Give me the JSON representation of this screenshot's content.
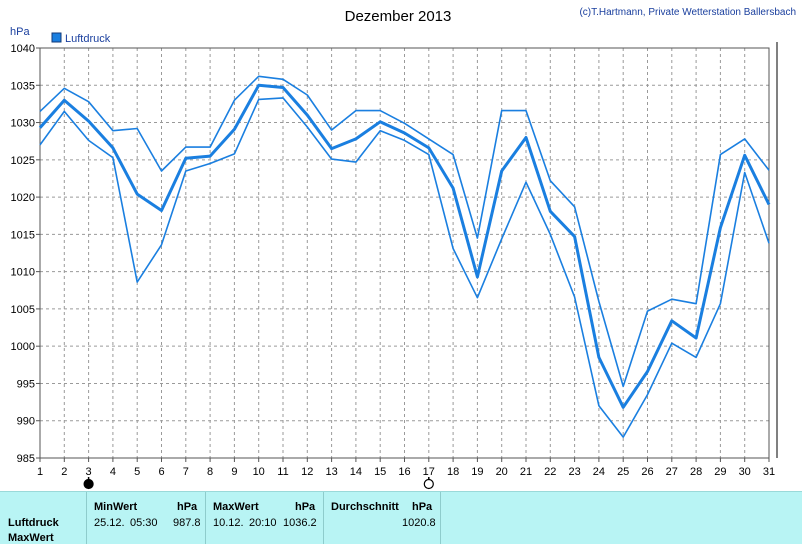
{
  "chart_data": {
    "type": "line",
    "title": "Dezember 2013",
    "copyright": "(c)T.Hartmann, Private Wetterstation Ballersbach",
    "ylabel": "hPa",
    "legend": {
      "label": "Luftdruck",
      "color": "#1a7fe0",
      "placement": "top-left"
    },
    "ylim": [
      985,
      1040
    ],
    "yticks": [
      985,
      990,
      995,
      1000,
      1005,
      1010,
      1015,
      1020,
      1025,
      1030,
      1035,
      1040
    ],
    "x": [
      1,
      2,
      3,
      4,
      5,
      6,
      7,
      8,
      9,
      10,
      11,
      12,
      13,
      14,
      15,
      16,
      17,
      18,
      19,
      20,
      21,
      22,
      23,
      24,
      25,
      26,
      27,
      28,
      29,
      30,
      31
    ],
    "grid": true,
    "series": [
      {
        "role": "max",
        "values": [
          1031.5,
          1034.6,
          1032.8,
          1028.9,
          1029.2,
          1023.5,
          1026.7,
          1026.7,
          1033.0,
          1036.2,
          1035.8,
          1033.7,
          1029.0,
          1031.6,
          1031.6,
          1029.9,
          1027.8,
          1025.7,
          1014.5,
          1031.6,
          1031.6,
          1022.2,
          1018.7,
          1006.0,
          994.6,
          1004.7,
          1006.3,
          1005.7,
          1025.7,
          1027.8,
          1023.6
        ]
      },
      {
        "role": "mean",
        "values": [
          1029.3,
          1033.0,
          1030.2,
          1026.6,
          1020.4,
          1018.2,
          1025.2,
          1025.5,
          1029.1,
          1035.0,
          1034.7,
          1031.0,
          1026.5,
          1027.8,
          1030.1,
          1028.6,
          1026.6,
          1021.2,
          1009.3,
          1023.5,
          1028.0,
          1018.1,
          1014.7,
          998.5,
          991.8,
          996.6,
          1003.4,
          1001.1,
          1015.9,
          1025.6,
          1019.0
        ]
      },
      {
        "role": "min",
        "values": [
          1027.0,
          1031.5,
          1027.6,
          1025.3,
          1008.6,
          1013.6,
          1023.5,
          1024.5,
          1025.8,
          1033.1,
          1033.3,
          1029.4,
          1025.1,
          1024.7,
          1028.9,
          1027.6,
          1025.7,
          1013.1,
          1006.5,
          1014.4,
          1022.0,
          1015.0,
          1006.6,
          992.0,
          987.8,
          993.5,
          1000.4,
          998.5,
          1005.7,
          1023.3,
          1013.8
        ]
      }
    ],
    "markers": [
      {
        "day": 3,
        "kind": "full-moon-dark"
      },
      {
        "day": 17,
        "kind": "moon-open"
      }
    ]
  },
  "stats": {
    "row_labels": [
      "Luftdruck",
      "MaxWert"
    ],
    "min": {
      "header": "MinWert",
      "unit": "hPa",
      "date": "25.12.",
      "time": "05:30",
      "value": "987.8"
    },
    "max": {
      "header": "MaxWert",
      "unit": "hPa",
      "date": "10.12.",
      "time": "20:10",
      "value": "1036.2"
    },
    "avg": {
      "header": "Durchschnitt",
      "unit": "hPa",
      "value": "1020.8"
    }
  },
  "colors": {
    "line": "#1a7fe0",
    "panel": "#b8f4f4",
    "text_blue": "#1a3f9e"
  }
}
